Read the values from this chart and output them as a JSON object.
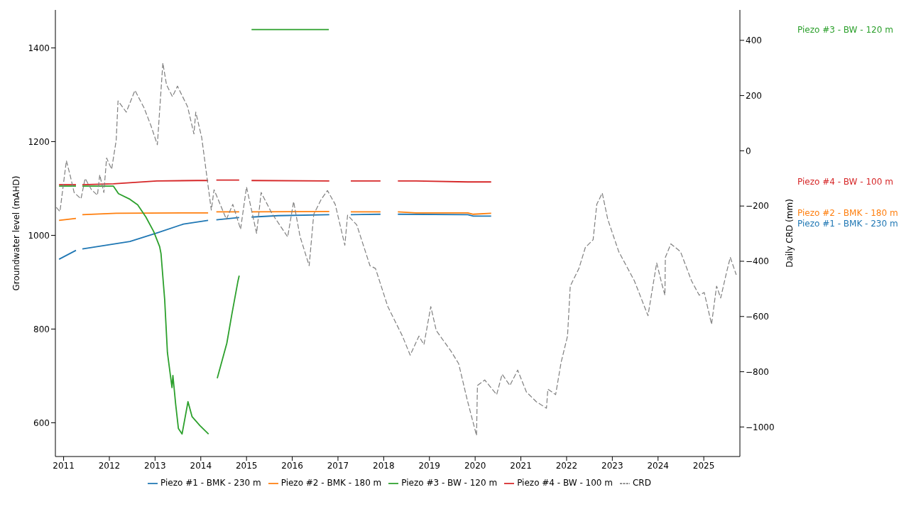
{
  "chart_data": {
    "type": "line",
    "ylabel": "Groundwater level (mAHD)",
    "y2label": "Daily CRD (mm)",
    "xlim": [
      2010.82,
      2025.79
    ],
    "xticks": [
      2011,
      2012,
      2013,
      2014,
      2015,
      2016,
      2017,
      2018,
      2019,
      2020,
      2021,
      2022,
      2023,
      2024,
      2025
    ],
    "ylim": [
      528,
      1481
    ],
    "yticks": [
      600,
      800,
      1000,
      1200,
      1400
    ],
    "y2lim": [
      -1107,
      510
    ],
    "y2ticks": [
      -1000,
      -800,
      -600,
      -400,
      -200,
      0,
      200,
      400
    ],
    "legend": "bottom",
    "series": [
      {
        "name": "Piezo #1 - BMK - 230 m",
        "color": "#1f77b4",
        "x": [
          2010.9,
          2011.27,
          2011.34,
          2011.41,
          2012.45,
          2013.04,
          2013.62,
          2014.16,
          2014.25,
          2014.34,
          2014.84,
          2014.97,
          2015.11,
          2015.69,
          2016.81,
          2017.05,
          2017.28,
          2017.93,
          2018.1,
          2018.31,
          2019.84,
          2019.96,
          2020.35
        ],
        "values": [
          949,
          968,
          null,
          971,
          987,
          1005,
          1024,
          1032,
          null,
          1033,
          1038,
          null,
          1039,
          1042,
          1044,
          null,
          1044,
          1045,
          null,
          1045,
          1044,
          1041,
          1041
        ]
      },
      {
        "name": "Piezo #2 - BMK - 180 m",
        "color": "#ff7f0e",
        "x": [
          2010.9,
          2011.27,
          2011.34,
          2011.41,
          2012.15,
          2013.62,
          2014.16,
          2014.25,
          2014.34,
          2014.84,
          2014.97,
          2015.11,
          2016.81,
          2017.05,
          2017.28,
          2017.93,
          2018.1,
          2018.31,
          2018.71,
          2019.84,
          2019.96,
          2020.35
        ],
        "values": [
          1032,
          1036,
          null,
          1044,
          1047,
          1048,
          1048,
          null,
          1050,
          1050,
          null,
          1050,
          1051,
          null,
          1050,
          1050,
          null,
          1050,
          1048,
          1048,
          1045,
          1047
        ]
      },
      {
        "name": "Piezo #3 - BW - 120 m",
        "color": "#2ca02c",
        "x": [
          2010.9,
          2011.27,
          2011.34,
          2011.41,
          2012.09,
          2012.2,
          2012.45,
          2012.62,
          2012.8,
          2012.97,
          2013.1,
          2013.13,
          2013.21,
          2013.27,
          2013.37,
          2013.39,
          2013.45,
          2013.51,
          2013.59,
          2013.72,
          2013.81,
          2013.98,
          2014.17,
          2014.25,
          2014.36,
          2014.57,
          2014.68,
          2014.81,
          2014.84,
          2014.97,
          2015.11,
          2016.8
        ],
        "values": [
          1105,
          1105,
          null,
          1105,
          1105,
          1089,
          1077,
          1065,
          1039,
          1008,
          976,
          961,
          863,
          750,
          675,
          701,
          640,
          588,
          576,
          645,
          613,
          594,
          576,
          null,
          695,
          770,
          832,
          901,
          914,
          null,
          1439,
          1439
        ]
      },
      {
        "name": "Piezo #4 - BW - 100 m",
        "color": "#d62728",
        "x": [
          2010.9,
          2011.27,
          2011.34,
          2011.41,
          2012.09,
          2013.04,
          2013.92,
          2014.16,
          2014.25,
          2014.34,
          2014.84,
          2014.97,
          2015.11,
          2016.81,
          2017.05,
          2017.28,
          2017.93,
          2018.1,
          2018.31,
          2018.71,
          2019.84,
          2020.35
        ],
        "values": [
          1108,
          1108,
          null,
          1108,
          1110,
          1116,
          1117,
          1117,
          null,
          1118,
          1118,
          null,
          1117,
          1116,
          null,
          1116,
          1116,
          null,
          1116,
          1116,
          1114,
          1114
        ]
      },
      {
        "name": "CRD",
        "color": "#7f7f7f",
        "axis": "y2",
        "line_style": "dashed",
        "x": [
          2010.84,
          2010.92,
          2011.06,
          2011.14,
          2011.23,
          2011.38,
          2011.47,
          2011.61,
          2011.74,
          2011.79,
          2011.88,
          2011.94,
          2012.05,
          2012.15,
          2012.19,
          2012.37,
          2012.56,
          2012.76,
          2012.91,
          2013.05,
          2013.17,
          2013.25,
          2013.38,
          2013.49,
          2013.71,
          2013.85,
          2013.89,
          2014.02,
          2014.23,
          2014.29,
          2014.56,
          2014.7,
          2014.87,
          2015.0,
          2015.22,
          2015.32,
          2015.55,
          2015.9,
          2016.03,
          2016.17,
          2016.37,
          2016.47,
          2016.64,
          2016.77,
          2016.94,
          2017.15,
          2017.21,
          2017.41,
          2017.7,
          2017.82,
          2018.09,
          2018.41,
          2018.58,
          2018.77,
          2018.88,
          2019.03,
          2019.15,
          2019.47,
          2019.64,
          2019.83,
          2020.03,
          2020.05,
          2020.21,
          2020.47,
          2020.59,
          2020.76,
          2020.93,
          2021.12,
          2021.34,
          2021.56,
          2021.59,
          2021.76,
          2021.88,
          2022.02,
          2022.08,
          2022.27,
          2022.41,
          2022.58,
          2022.66,
          2022.78,
          2022.9,
          2023.14,
          2023.48,
          2023.78,
          2023.97,
          2024.08,
          2024.15,
          2024.16,
          2024.28,
          2024.49,
          2024.73,
          2024.9,
          2025.01,
          2025.17,
          2025.28,
          2025.37,
          2025.5,
          2025.58,
          2025.71
        ],
        "values": [
          -205,
          -220,
          -36,
          -87,
          -151,
          -174,
          -100,
          -141,
          -161,
          -87,
          -151,
          -26,
          -67,
          38,
          181,
          140,
          219,
          155,
          91,
          22,
          318,
          239,
          196,
          234,
          160,
          61,
          140,
          48,
          -215,
          -141,
          -248,
          -194,
          -284,
          -131,
          -299,
          -151,
          -225,
          -312,
          -184,
          -310,
          -416,
          -230,
          -174,
          -144,
          -194,
          -342,
          -233,
          -268,
          -416,
          -426,
          -564,
          -671,
          -740,
          -671,
          -702,
          -564,
          -651,
          -725,
          -771,
          -904,
          -1031,
          -850,
          -830,
          -883,
          -809,
          -850,
          -794,
          -873,
          -909,
          -932,
          -863,
          -883,
          -766,
          -671,
          -490,
          -426,
          -350,
          -322,
          -194,
          -153,
          -248,
          -365,
          -470,
          -597,
          -406,
          -480,
          -523,
          -386,
          -337,
          -365,
          -470,
          -523,
          -513,
          -628,
          -490,
          -533,
          -439,
          -386,
          -449
        ]
      }
    ]
  }
}
